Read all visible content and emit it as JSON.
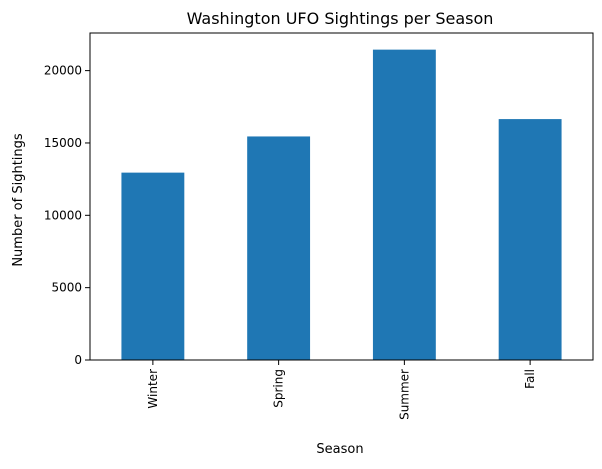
{
  "chart_data": {
    "type": "bar",
    "title": "Washington UFO Sightings per Season",
    "xlabel": "Season",
    "ylabel": "Number of Sightings",
    "categories": [
      "Winter",
      "Spring",
      "Summer",
      "Fall"
    ],
    "values": [
      12950,
      15450,
      21450,
      16650
    ],
    "ylim": [
      0,
      22600
    ],
    "yticks": [
      0,
      5000,
      10000,
      15000,
      20000
    ],
    "bar_color": "#1f77b4",
    "grid": false,
    "legend": "none"
  }
}
